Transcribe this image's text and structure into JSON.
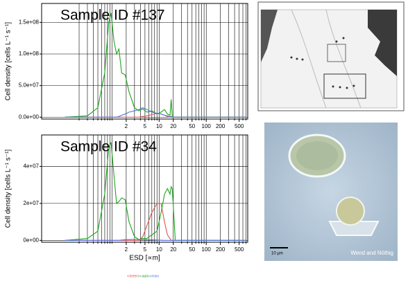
{
  "chart_data": [
    {
      "type": "line",
      "title": "Sample ID #137",
      "ylabel": "Cell density [cells L⁻¹ s⁻¹]",
      "log_x": true,
      "grid": true,
      "x": [
        0.1,
        0.3,
        0.5,
        0.7,
        0.85,
        0.95,
        1.1,
        1.25,
        1.4,
        1.6,
        1.9,
        2.3,
        3,
        3.7,
        4.5,
        5.5,
        7,
        9,
        11,
        13,
        15,
        17,
        18,
        19,
        22,
        30,
        100,
        700
      ],
      "series": [
        {
          "name": "hetero",
          "color": "#e05050",
          "values": [
            0,
            0,
            0,
            0,
            0,
            0,
            0,
            0,
            0,
            0,
            0,
            0,
            0,
            0,
            1000000,
            2000000,
            4000000,
            6000000,
            5000000,
            3000000,
            1000000,
            0,
            0,
            0,
            0,
            0,
            0,
            0
          ]
        },
        {
          "name": "auto",
          "color": "#1aa51a",
          "values": [
            0,
            2000000,
            15000000,
            70000000,
            150000000,
            165000000,
            120000000,
            100000000,
            108000000,
            70000000,
            67000000,
            40000000,
            15000000,
            10000000,
            13000000,
            8000000,
            10000000,
            5000000,
            8000000,
            12000000,
            5000000,
            3000000,
            28000000,
            0,
            0,
            0,
            0,
            0
          ]
        },
        {
          "name": "mixo",
          "color": "#5070e0",
          "values": [
            0,
            0,
            0,
            0,
            0,
            0,
            0,
            0,
            1000000,
            3000000,
            5000000,
            8000000,
            10000000,
            12000000,
            15000000,
            12000000,
            8000000,
            6000000,
            5000000,
            3000000,
            2000000,
            1000000,
            1000000,
            0,
            0,
            0,
            0,
            0
          ]
        }
      ],
      "xlim": [
        0.032,
        760
      ],
      "ylim": [
        -3000000,
        180000000
      ],
      "xticks": [
        2,
        5,
        10,
        20,
        50,
        100,
        200,
        500
      ],
      "minor_xticks": [
        0.2,
        0.3,
        0.4,
        0.5,
        0.6,
        0.7,
        0.8,
        0.9,
        1,
        3,
        4,
        6,
        7,
        8,
        9,
        30,
        40,
        60,
        70,
        80,
        90,
        300,
        400,
        600,
        700
      ],
      "yticks": [
        {
          "value": 0,
          "label": "0.0e+00"
        },
        {
          "value": 50000000,
          "label": "5.0e+07"
        },
        {
          "value": 100000000,
          "label": "1.0e+08"
        },
        {
          "value": 150000000,
          "label": "1.5e+08"
        }
      ]
    },
    {
      "type": "line",
      "title": "Sample ID #34",
      "ylabel": "Cell density [cells L⁻¹ s⁻¹]",
      "xlabel": "ESD [∝m]",
      "log_x": true,
      "grid": true,
      "x": [
        0.1,
        0.3,
        0.5,
        0.7,
        0.85,
        0.95,
        1.1,
        1.25,
        1.4,
        1.6,
        1.9,
        2.3,
        3,
        3.7,
        4.5,
        5.5,
        7,
        9,
        11,
        13,
        15,
        17,
        18,
        19,
        22,
        30,
        100,
        700
      ],
      "series": [
        {
          "name": "hetero",
          "color": "#e05050",
          "values": [
            0,
            0,
            0,
            0,
            0,
            0,
            0,
            0,
            0,
            0,
            0,
            0,
            0,
            0,
            2000000,
            8000000,
            15000000,
            20000000,
            20000000,
            10000000,
            3000000,
            1000000,
            0,
            0,
            0,
            0,
            0,
            0
          ]
        },
        {
          "name": "auto",
          "color": "#1aa51a",
          "values": [
            0,
            1000000,
            5000000,
            25000000,
            50000000,
            53000000,
            35000000,
            20000000,
            21000000,
            23000000,
            22000000,
            10000000,
            2000000,
            500000,
            1000000,
            1000000,
            3000000,
            5000000,
            15000000,
            25000000,
            28000000,
            25000000,
            29000000,
            28000000,
            0,
            0,
            0,
            0
          ]
        },
        {
          "name": "mixo",
          "color": "#5070e0",
          "values": [
            0,
            0,
            0,
            0,
            0,
            0,
            0,
            0,
            0,
            200000,
            400000,
            500000,
            500000,
            500000,
            500000,
            400000,
            300000,
            200000,
            100000,
            0,
            0,
            0,
            0,
            0,
            0,
            0,
            0,
            0
          ]
        }
      ],
      "xlim": [
        0.032,
        760
      ],
      "ylim": [
        -1000000,
        57000000
      ],
      "xticks": [
        2,
        5,
        10,
        20,
        50,
        100,
        200,
        500
      ],
      "minor_xticks": [
        0.2,
        0.3,
        0.4,
        0.5,
        0.6,
        0.7,
        0.8,
        0.9,
        1,
        3,
        4,
        6,
        7,
        8,
        9,
        30,
        40,
        60,
        70,
        80,
        90,
        300,
        400,
        600,
        700
      ],
      "yticks": [
        {
          "value": 0,
          "label": "0e+00"
        },
        {
          "value": 20000000,
          "label": "2e+07"
        },
        {
          "value": 40000000,
          "label": "4e+07"
        }
      ]
    }
  ],
  "photo": {
    "scale_label": "10 µm",
    "credit": "Wend and Nöthig"
  }
}
